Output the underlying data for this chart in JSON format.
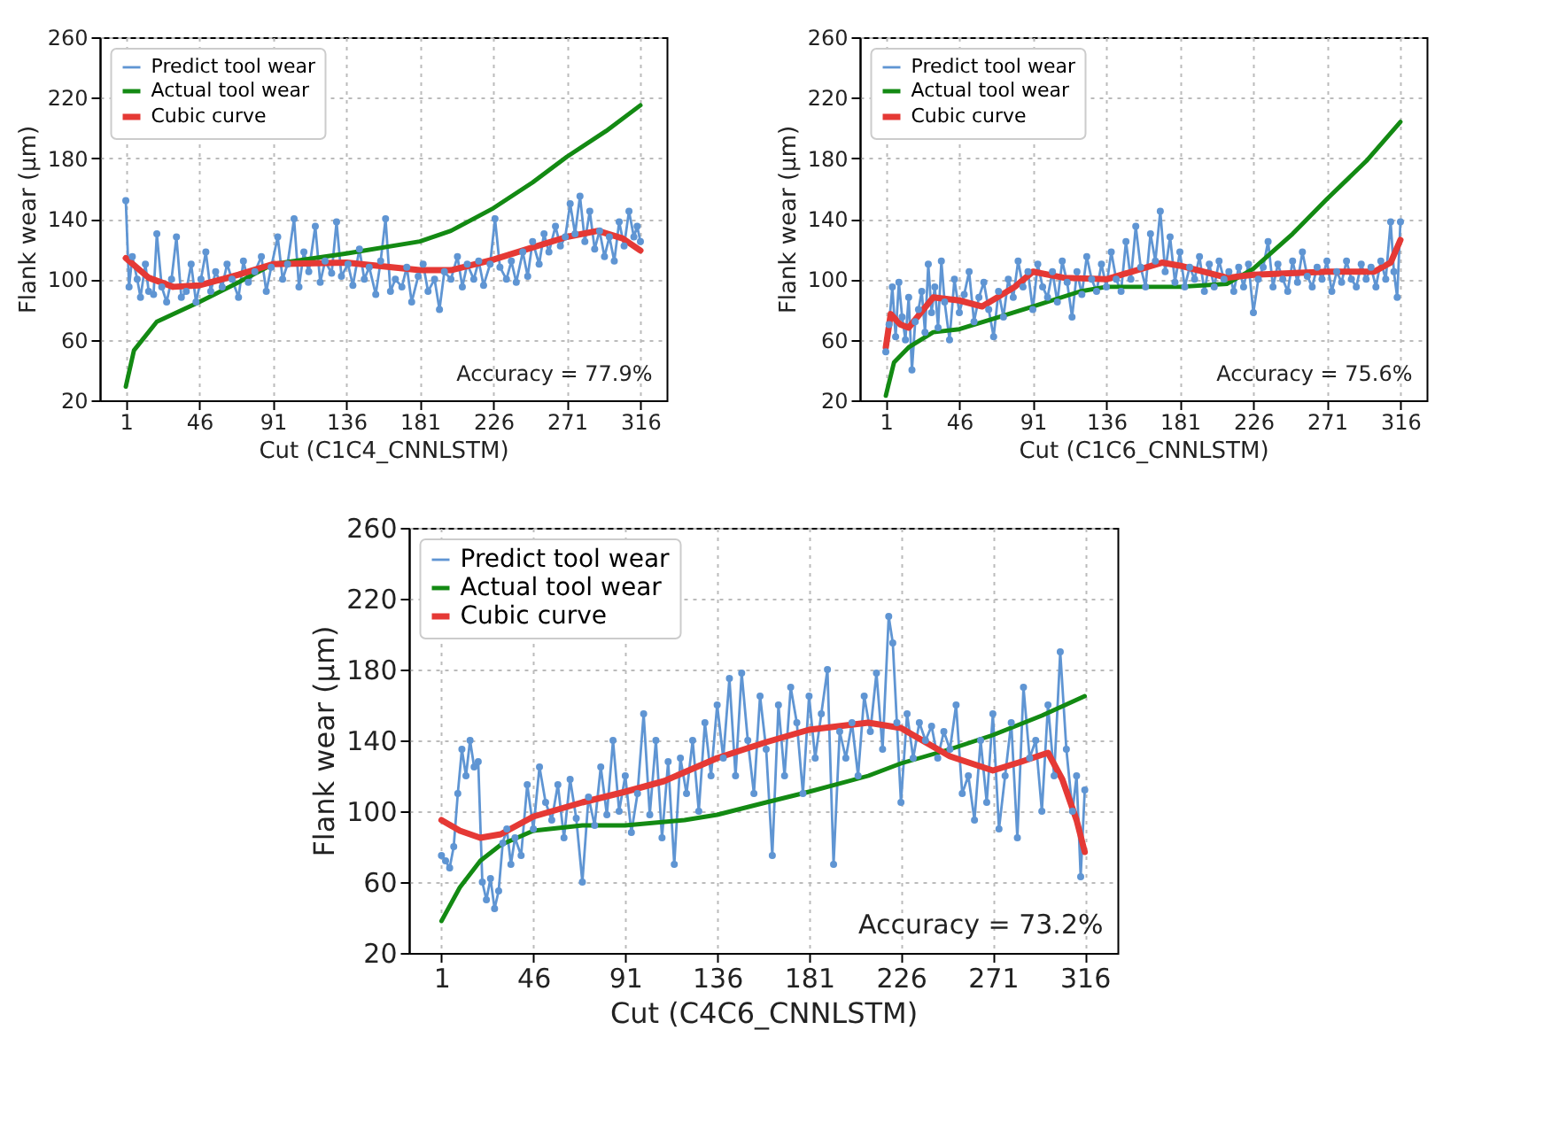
{
  "chart_data": [
    {
      "type": "line",
      "xlabel": "Cut (C1C4_CNNLSTM)",
      "ylabel": "Flank wear (μm)",
      "xlim": [
        -15,
        332
      ],
      "ylim": [
        20,
        260
      ],
      "xticks": [
        1,
        46,
        91,
        136,
        181,
        226,
        271,
        316
      ],
      "yticks": [
        20,
        60,
        100,
        140,
        180,
        220,
        260
      ],
      "grid": true,
      "legend": "top left",
      "annotations": [
        "Accuracy = 77.9%"
      ],
      "series": [
        {
          "name": "Predict tool wear",
          "color": "#5f95d3",
          "marker": "circle",
          "x": [
            1,
            3,
            5,
            8,
            10,
            13,
            15,
            18,
            20,
            23,
            26,
            29,
            32,
            35,
            38,
            41,
            44,
            47,
            50,
            53,
            56,
            60,
            63,
            66,
            70,
            73,
            76,
            80,
            84,
            87,
            90,
            94,
            97,
            100,
            104,
            107,
            110,
            113,
            117,
            120,
            123,
            127,
            130,
            133,
            137,
            140,
            144,
            147,
            150,
            154,
            157,
            160,
            163,
            166,
            170,
            173,
            176,
            180,
            183,
            186,
            190,
            193,
            196,
            200,
            204,
            207,
            210,
            214,
            217,
            220,
            224,
            227,
            230,
            234,
            237,
            240,
            244,
            247,
            250,
            254,
            257,
            260,
            264,
            267,
            270,
            273,
            276,
            279,
            282,
            285,
            288,
            291,
            294,
            297,
            300,
            303,
            306,
            309,
            312,
            314,
            316
          ],
          "values": [
            152,
            95,
            115,
            100,
            88,
            110,
            92,
            90,
            130,
            95,
            85,
            100,
            128,
            88,
            92,
            110,
            85,
            100,
            118,
            92,
            105,
            95,
            110,
            100,
            88,
            112,
            98,
            105,
            115,
            92,
            108,
            128,
            100,
            110,
            140,
            95,
            118,
            105,
            135,
            98,
            112,
            104,
            138,
            102,
            110,
            96,
            120,
            100,
            108,
            90,
            112,
            140,
            92,
            100,
            95,
            108,
            85,
            102,
            110,
            92,
            100,
            80,
            105,
            100,
            115,
            95,
            110,
            100,
            112,
            96,
            110,
            140,
            108,
            100,
            112,
            98,
            118,
            102,
            125,
            110,
            130,
            118,
            135,
            122,
            128,
            150,
            130,
            155,
            125,
            145,
            120,
            132,
            115,
            128,
            112,
            138,
            122,
            145,
            128,
            135,
            125
          ]
        },
        {
          "name": "Actual tool wear",
          "color": "#138a13",
          "x": [
            1,
            6,
            20,
            46,
            70,
            91,
            136,
            181,
            200,
            226,
            250,
            271,
            295,
            316
          ],
          "values": [
            29,
            53,
            72,
            85,
            98,
            110,
            117,
            125,
            132,
            147,
            164,
            181,
            198,
            215
          ]
        },
        {
          "name": "Cubic curve",
          "color": "#e53935",
          "x": [
            1,
            15,
            30,
            46,
            70,
            91,
            136,
            181,
            200,
            226,
            250,
            271,
            290,
            305,
            316
          ],
          "values": [
            114,
            101,
            95,
            96,
            103,
            110,
            111,
            106,
            106,
            113,
            121,
            128,
            132,
            127,
            119
          ]
        }
      ]
    },
    {
      "type": "line",
      "xlabel": "Cut (C1C6_CNNLSTM)",
      "ylabel": "Flank wear (μm)",
      "xlim": [
        -15,
        332
      ],
      "ylim": [
        20,
        260
      ],
      "xticks": [
        1,
        46,
        91,
        136,
        181,
        226,
        271,
        316
      ],
      "yticks": [
        20,
        60,
        100,
        140,
        180,
        220,
        260
      ],
      "grid": true,
      "legend": "top left",
      "annotations": [
        "Accuracy = 75.6%"
      ],
      "series": [
        {
          "name": "Predict tool wear",
          "color": "#5f95d3",
          "marker": "circle",
          "x": [
            1,
            3,
            5,
            7,
            9,
            11,
            13,
            15,
            17,
            19,
            21,
            23,
            25,
            27,
            29,
            31,
            33,
            35,
            37,
            40,
            43,
            46,
            49,
            52,
            55,
            58,
            61,
            64,
            67,
            70,
            73,
            76,
            79,
            82,
            85,
            88,
            91,
            94,
            97,
            100,
            103,
            106,
            109,
            112,
            115,
            118,
            121,
            124,
            127,
            130,
            133,
            136,
            139,
            142,
            145,
            148,
            151,
            154,
            157,
            160,
            163,
            166,
            169,
            172,
            175,
            178,
            181,
            184,
            187,
            190,
            193,
            196,
            199,
            202,
            205,
            208,
            211,
            214,
            217,
            220,
            223,
            226,
            229,
            232,
            235,
            238,
            241,
            244,
            247,
            250,
            253,
            256,
            259,
            262,
            265,
            268,
            271,
            274,
            277,
            280,
            283,
            286,
            289,
            292,
            295,
            298,
            301,
            304,
            307,
            310,
            312,
            314,
            316
          ],
          "values": [
            52,
            70,
            95,
            62,
            98,
            75,
            60,
            88,
            40,
            72,
            80,
            92,
            65,
            110,
            78,
            95,
            68,
            112,
            85,
            60,
            100,
            78,
            90,
            105,
            72,
            88,
            98,
            80,
            62,
            92,
            75,
            100,
            88,
            112,
            95,
            105,
            80,
            110,
            95,
            88,
            105,
            85,
            112,
            98,
            75,
            105,
            90,
            115,
            100,
            92,
            110,
            95,
            118,
            100,
            92,
            125,
            100,
            135,
            108,
            95,
            130,
            112,
            145,
            105,
            128,
            98,
            118,
            95,
            108,
            100,
            115,
            92,
            110,
            95,
            112,
            100,
            105,
            92,
            108,
            95,
            110,
            78,
            100,
            108,
            125,
            95,
            110,
            100,
            92,
            112,
            98,
            118,
            102,
            95,
            108,
            100,
            112,
            92,
            105,
            98,
            112,
            100,
            95,
            110,
            100,
            108,
            95,
            112,
            100,
            138,
            105,
            88,
            138
          ]
        },
        {
          "name": "Actual tool wear",
          "color": "#138a13",
          "x": [
            1,
            6,
            15,
            30,
            46,
            70,
            91,
            120,
            136,
            181,
            210,
            226,
            250,
            271,
            295,
            316
          ],
          "values": [
            23,
            45,
            55,
            65,
            67,
            75,
            82,
            92,
            95,
            95,
            97,
            107,
            130,
            153,
            178,
            204
          ]
        },
        {
          "name": "Cubic curve",
          "color": "#e53935",
          "x": [
            1,
            4,
            10,
            15,
            30,
            46,
            60,
            80,
            91,
            110,
            136,
            170,
            181,
            210,
            226,
            271,
            300,
            310,
            316
          ],
          "values": [
            55,
            77,
            70,
            68,
            88,
            86,
            82,
            95,
            105,
            101,
            100,
            111,
            109,
            101,
            103,
            105,
            105,
            111,
            126
          ]
        }
      ]
    },
    {
      "type": "line",
      "xlabel": "Cut (C4C6_CNNLSTM)",
      "ylabel": "Flank wear (μm)",
      "xlim": [
        -15,
        332
      ],
      "ylim": [
        20,
        260
      ],
      "xticks": [
        1,
        46,
        91,
        136,
        181,
        226,
        271,
        316
      ],
      "yticks": [
        20,
        60,
        100,
        140,
        180,
        220,
        260
      ],
      "grid": true,
      "legend": "top left",
      "annotations": [
        "Accuracy = 73.2%"
      ],
      "series": [
        {
          "name": "Predict tool wear",
          "color": "#5f95d3",
          "marker": "circle",
          "x": [
            1,
            3,
            5,
            7,
            9,
            11,
            13,
            15,
            17,
            19,
            21,
            23,
            25,
            27,
            29,
            31,
            33,
            35,
            37,
            40,
            43,
            46,
            49,
            52,
            55,
            58,
            61,
            64,
            67,
            70,
            73,
            76,
            79,
            82,
            85,
            88,
            91,
            94,
            97,
            100,
            103,
            106,
            109,
            112,
            115,
            118,
            121,
            124,
            127,
            130,
            133,
            136,
            139,
            142,
            145,
            148,
            151,
            154,
            157,
            160,
            163,
            166,
            169,
            172,
            175,
            178,
            181,
            184,
            187,
            190,
            193,
            196,
            199,
            202,
            205,
            208,
            211,
            214,
            217,
            220,
            222,
            224,
            226,
            229,
            232,
            235,
            238,
            241,
            244,
            247,
            250,
            253,
            256,
            259,
            262,
            265,
            268,
            271,
            274,
            277,
            280,
            283,
            286,
            289,
            292,
            295,
            298,
            301,
            304,
            307,
            310,
            312,
            314,
            316
          ],
          "values": [
            75,
            72,
            68,
            80,
            110,
            135,
            120,
            140,
            125,
            128,
            60,
            50,
            62,
            45,
            55,
            82,
            90,
            70,
            85,
            75,
            115,
            90,
            125,
            105,
            95,
            115,
            85,
            118,
            96,
            60,
            108,
            92,
            125,
            98,
            140,
            100,
            120,
            88,
            110,
            155,
            98,
            140,
            85,
            128,
            70,
            130,
            110,
            140,
            100,
            150,
            120,
            160,
            130,
            175,
            120,
            178,
            140,
            110,
            165,
            135,
            75,
            160,
            120,
            170,
            150,
            110,
            165,
            130,
            155,
            180,
            70,
            145,
            130,
            150,
            120,
            165,
            145,
            178,
            135,
            210,
            195,
            150,
            105,
            155,
            130,
            150,
            140,
            148,
            130,
            145,
            135,
            160,
            110,
            120,
            95,
            140,
            105,
            155,
            90,
            120,
            150,
            85,
            170,
            130,
            140,
            100,
            160,
            120,
            190,
            135,
            100,
            120,
            63,
            112
          ]
        },
        {
          "name": "Actual tool wear",
          "color": "#138a13",
          "x": [
            1,
            10,
            20,
            30,
            46,
            70,
            91,
            120,
            136,
            160,
            181,
            210,
            226,
            250,
            271,
            295,
            316
          ],
          "values": [
            38,
            57,
            72,
            81,
            89,
            92,
            92,
            95,
            98,
            105,
            111,
            120,
            127,
            135,
            143,
            154,
            165
          ]
        },
        {
          "name": "Cubic curve",
          "color": "#e53935",
          "x": [
            1,
            10,
            20,
            30,
            46,
            70,
            91,
            110,
            136,
            160,
            181,
            210,
            226,
            250,
            271,
            285,
            298,
            305,
            312,
            316
          ],
          "values": [
            95,
            89,
            85,
            87,
            97,
            105,
            111,
            117,
            130,
            139,
            146,
            150,
            147,
            131,
            123,
            128,
            133,
            118,
            95,
            77
          ]
        }
      ]
    }
  ]
}
